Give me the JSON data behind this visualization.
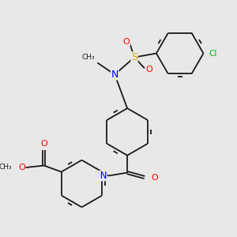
{
  "background_color": "#e8e8e8",
  "bond_color": "#1a1a1a",
  "atom_colors": {
    "N": "#0000ff",
    "O": "#ff0000",
    "S": "#ccaa00",
    "Cl": "#00bb00",
    "H": "#777777",
    "C": "#1a1a1a"
  },
  "figsize": [
    3.0,
    3.0
  ],
  "dpi": 100
}
